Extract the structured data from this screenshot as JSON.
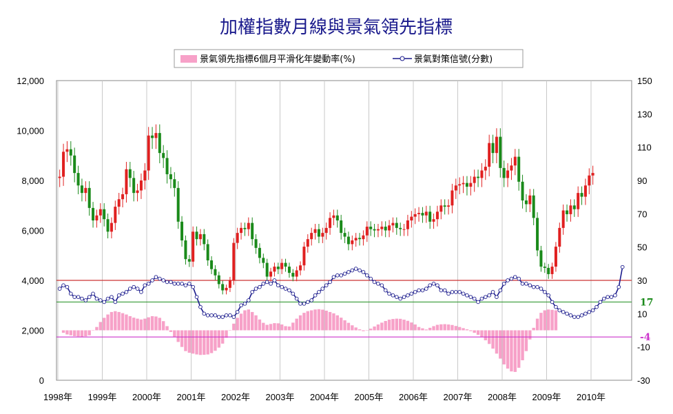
{
  "chart_data": {
    "type": "candlestick+bar+line",
    "title": "加權指數月線與景氣領先指標",
    "legend": {
      "bar_label": "景氣領先指標6個月平滑化年變動率(%)",
      "line_label": "景氣對策信號(分數)",
      "placement": "top"
    },
    "x_axis": {
      "labels": [
        "1998年",
        "1999年",
        "2000年",
        "2001年",
        "2002年",
        "2003年",
        "2004年",
        "2005年",
        "2006年",
        "2007年",
        "2008年",
        "2009年",
        "2010年"
      ],
      "start_year": 1998
    },
    "left_axis": {
      "min": 0,
      "max": 12000,
      "ticks": [
        "0",
        "2,000",
        "4,000",
        "6,000",
        "8,000",
        "10,000",
        "12,000"
      ]
    },
    "right_axis": {
      "min": -30,
      "max": 150,
      "ticks": [
        "-30",
        "-10",
        "10",
        "30",
        "50",
        "70",
        "90",
        "110",
        "130",
        "150"
      ]
    },
    "reference_lines": [
      {
        "value": 30,
        "color": "#cc3333",
        "label": ""
      },
      {
        "value": 17,
        "color": "#339933",
        "label": "17"
      },
      {
        "value": -4,
        "color": "#cc33cc",
        "label": "-4"
      }
    ],
    "index_monthly_close": [
      8150,
      9150,
      9250,
      9000,
      8300,
      7800,
      7500,
      7700,
      6900,
      6400,
      6600,
      6850,
      6450,
      5950,
      6300,
      6950,
      7250,
      7450,
      8450,
      8100,
      7500,
      7600,
      8000,
      8400,
      9800,
      9700,
      9900,
      9100,
      8900,
      8250,
      8050,
      7700,
      6350,
      5600,
      4850,
      4750,
      5950,
      5650,
      5850,
      5450,
      4800,
      4450,
      4200,
      3850,
      3600,
      3700,
      4000,
      5500,
      5900,
      6100,
      6050,
      6300,
      5650,
      5300,
      4900,
      4700,
      4150,
      4350,
      4550,
      4450,
      4700,
      4550,
      4300,
      4150,
      4400,
      4600,
      5350,
      5650,
      5900,
      6050,
      5750,
      5900,
      6100,
      6500,
      6600,
      6400,
      5900,
      5750,
      5450,
      5600,
      5700,
      5650,
      5800,
      6150,
      6050,
      6000,
      6050,
      6150,
      6000,
      6200,
      6300,
      6100,
      6050,
      6050,
      6400,
      6550,
      6650,
      6700,
      6600,
      6750,
      6350,
      6450,
      6750,
      7000,
      6950,
      7000,
      7600,
      7800,
      7850,
      7900,
      7750,
      7900,
      8150,
      8100,
      8400,
      8550,
      9500,
      9100,
      9750,
      8500,
      8100,
      8400,
      8600,
      8950,
      7950,
      7200,
      7050,
      7400,
      6500,
      5200,
      4550,
      4500,
      4250,
      4550,
      5350,
      6100,
      6800,
      6650,
      7000,
      6850,
      7500,
      7350,
      7800,
      8200,
      8300
    ],
    "leading_index_yoy": [
      -1.5,
      -2.5,
      -3,
      -3.5,
      -3.7,
      -4,
      -3.6,
      -3,
      0,
      2,
      5,
      7.5,
      9.5,
      11,
      11.5,
      11,
      10.3,
      9.5,
      8.5,
      7.6,
      7,
      6.5,
      7,
      7.8,
      8.5,
      8.3,
      7.5,
      5.5,
      2.5,
      -1,
      -4,
      -7,
      -10,
      -12.5,
      -13.5,
      -14,
      -14.5,
      -14.8,
      -14.7,
      -14.5,
      -13.7,
      -12.3,
      -10.4,
      -8,
      -4.5,
      0,
      4,
      7.5,
      10,
      12,
      12.5,
      11,
      9,
      6.5,
      4.5,
      3.3,
      3.8,
      4.3,
      4.2,
      3.5,
      2.5,
      2.3,
      4.6,
      7,
      9,
      10.5,
      11.5,
      12,
      12.5,
      12.7,
      12.4,
      11.8,
      11,
      10.2,
      9,
      7.6,
      6,
      4.5,
      3,
      1.7,
      0.6,
      -0.5,
      0,
      1,
      2.3,
      3.5,
      4.6,
      5.6,
      6.4,
      6.8,
      7,
      6.9,
      6.4,
      5.7,
      4.7,
      3.5,
      2,
      1.2,
      0.5,
      1.5,
      2.5,
      3.3,
      3.6,
      3.7,
      3.5,
      3.2,
      2.6,
      2,
      1.3,
      0.6,
      -0.5,
      -1.5,
      -2.7,
      -4.2,
      -6,
      -8.2,
      -11,
      -14,
      -17,
      -20.5,
      -23,
      -24.7,
      -25,
      -22.5,
      -18,
      -12.5,
      -5.5,
      1.5,
      7,
      10.5,
      12,
      12.5,
      12.3,
      12
    ],
    "signal_score": [
      25,
      27,
      26,
      22,
      20,
      20,
      19,
      18,
      20,
      22,
      19,
      18,
      17,
      19,
      20,
      17,
      21,
      22,
      23,
      25,
      26,
      25,
      23,
      27,
      28,
      30,
      32,
      31,
      30,
      29,
      29,
      28,
      28,
      28,
      27,
      28,
      26,
      20,
      14,
      10,
      9,
      9,
      9,
      8,
      8,
      9,
      9,
      8,
      11,
      15,
      16,
      18,
      23,
      25,
      26,
      28,
      29,
      28,
      30,
      27,
      26,
      25,
      24,
      22,
      19,
      16,
      16,
      17,
      18,
      21,
      23,
      25,
      27,
      29,
      32,
      33,
      33,
      34,
      35,
      36,
      37,
      36,
      35,
      33,
      31,
      29,
      28,
      27,
      24,
      22,
      21,
      20,
      19,
      20,
      21,
      22,
      23,
      24,
      24,
      25,
      27,
      28,
      27,
      24,
      24,
      22,
      23,
      23,
      23,
      22,
      21,
      20,
      19,
      17,
      19,
      20,
      21,
      23,
      20,
      24,
      28,
      30,
      31,
      32,
      31,
      28,
      28,
      27,
      26,
      26,
      25,
      23,
      21,
      17,
      14,
      12,
      11,
      10,
      9,
      8,
      8,
      9,
      10,
      11,
      12,
      14,
      17,
      19,
      20,
      20,
      21,
      26,
      38
    ]
  }
}
